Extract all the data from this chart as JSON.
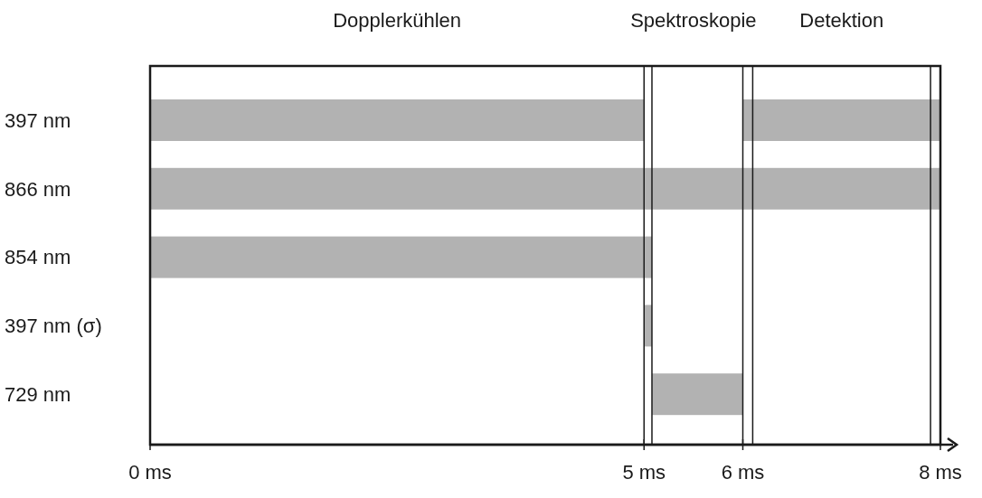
{
  "chart_data": {
    "type": "bar",
    "orientation": "horizontal",
    "categories": [
      "397 nm",
      "866 nm",
      "854 nm",
      "397 nm (σ)",
      "729 nm"
    ],
    "series": [
      {
        "color": "#b2b2b2",
        "base": [
          0,
          0,
          0,
          5,
          5.08
        ],
        "values": [
          5,
          8,
          5.08,
          0.08,
          0.92
        ]
      },
      {
        "color": "#b2b2b2",
        "base": [
          6,
          null,
          null,
          null,
          null
        ],
        "values": [
          2,
          null,
          null,
          null,
          null
        ]
      }
    ],
    "xlim": [
      0,
      8
    ],
    "xticks": [
      {
        "value": 0,
        "label": "0 ms"
      },
      {
        "value": 5,
        "label": "5 ms"
      },
      {
        "value": 6,
        "label": "6 ms"
      },
      {
        "value": 8,
        "label": "8 ms"
      }
    ],
    "annotations": [
      "Dopplerkühlen",
      "Spektroskopie",
      "Detektion"
    ],
    "ref_lines": [
      {
        "axis": "x",
        "value": 5
      },
      {
        "axis": "x",
        "value": 5.08
      },
      {
        "axis": "x",
        "value": 6
      },
      {
        "axis": "x",
        "value": 6.1
      },
      {
        "axis": "x",
        "value": 7.9
      }
    ]
  }
}
